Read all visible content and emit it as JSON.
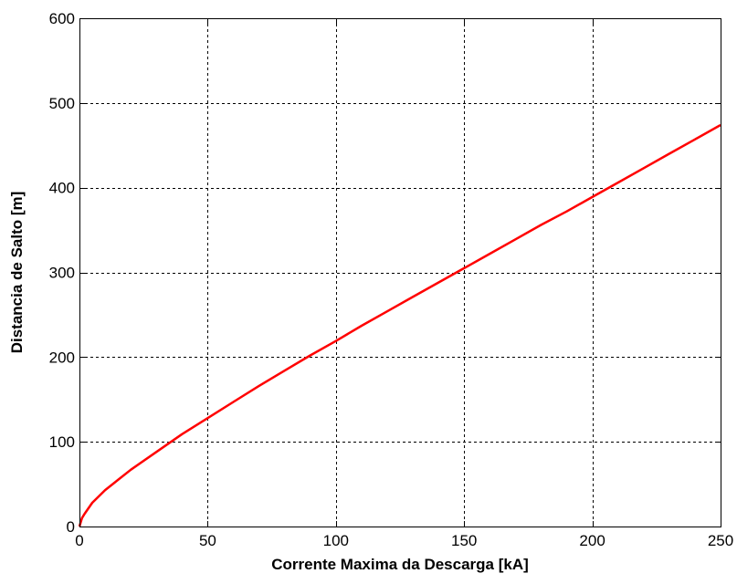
{
  "chart_data": {
    "type": "line",
    "title": "",
    "xlabel": "Corrente Maxima da Descarga [kA]",
    "ylabel": "Distancia de Salto [m]",
    "xlim": [
      0,
      250
    ],
    "ylim": [
      0,
      600
    ],
    "xticks": [
      0,
      50,
      100,
      150,
      200,
      250
    ],
    "yticks": [
      0,
      100,
      200,
      300,
      400,
      500,
      600
    ],
    "xtick_labels": [
      "0",
      "50",
      "100",
      "150",
      "200",
      "250"
    ],
    "ytick_labels": [
      "0",
      "100",
      "200",
      "300",
      "400",
      "500",
      "600"
    ],
    "grid": true,
    "series": [
      {
        "color": "#ff0000",
        "x": [
          0,
          1,
          2,
          5,
          10,
          20,
          30,
          40,
          50,
          60,
          70,
          80,
          90,
          100,
          110,
          120,
          130,
          140,
          150,
          160,
          170,
          180,
          190,
          200,
          210,
          220,
          230,
          240,
          250
        ],
        "y": [
          0,
          10,
          15,
          28,
          43,
          67,
          88,
          109,
          128,
          147,
          166,
          184,
          202,
          219,
          237,
          254,
          271,
          288,
          305,
          322,
          339,
          356,
          372,
          389,
          406,
          423,
          440,
          457,
          474
        ]
      }
    ]
  }
}
